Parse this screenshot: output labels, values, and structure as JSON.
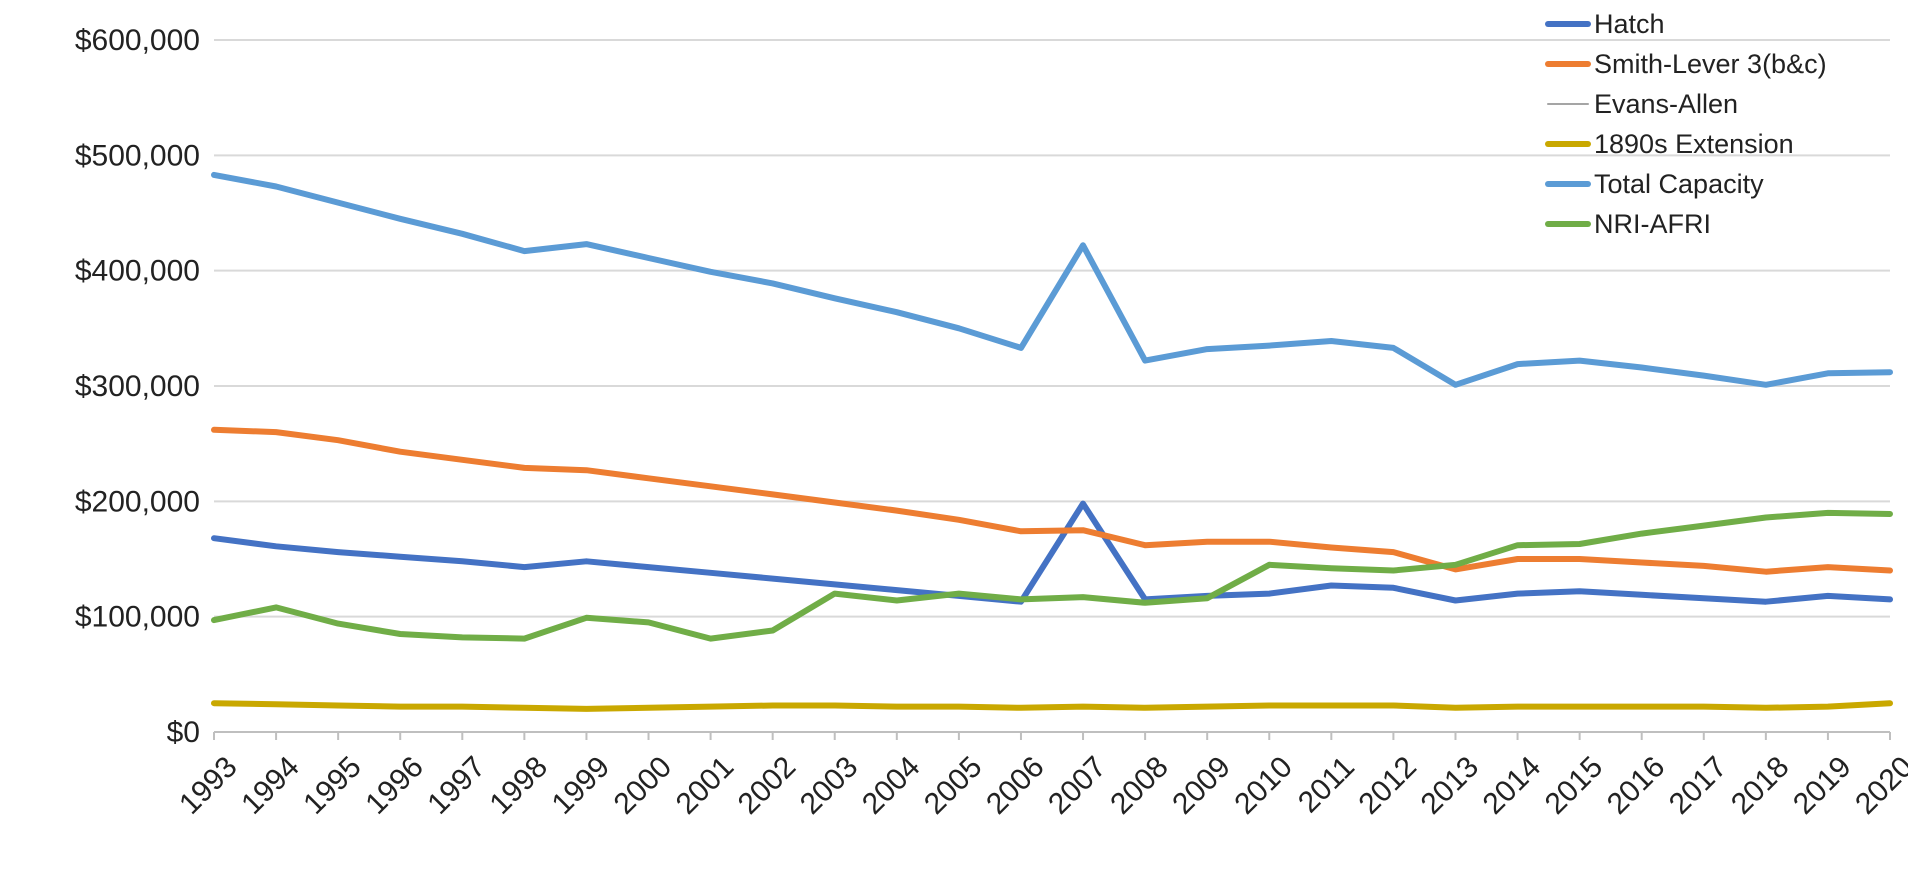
{
  "chart_data": {
    "type": "line",
    "title": "",
    "xlabel": "",
    "ylabel": "",
    "ylim": [
      0,
      600000
    ],
    "y_ticks": [
      0,
      100000,
      200000,
      300000,
      400000,
      500000,
      600000
    ],
    "y_tick_labels": [
      "$0",
      "$100,000",
      "$200,000",
      "$300,000",
      "$400,000",
      "$500,000",
      "$600,000"
    ],
    "grid": true,
    "legend_position": "top-right",
    "x": [
      "1993",
      "1994",
      "1995",
      "1996",
      "1997",
      "1998",
      "1999",
      "2000",
      "2001",
      "2002",
      "2003",
      "2004",
      "2005",
      "2006",
      "2007",
      "2008",
      "2009",
      "2010",
      "2011",
      "2012",
      "2013",
      "2014",
      "2015",
      "2016",
      "2017",
      "2018",
      "2019",
      "2020"
    ],
    "series": [
      {
        "name": "Hatch",
        "color": "#4472C4",
        "values": [
          168000,
          161000,
          156000,
          152000,
          148000,
          143000,
          148000,
          143000,
          138000,
          133000,
          128000,
          123000,
          118000,
          113000,
          198000,
          115000,
          118000,
          120000,
          127000,
          125000,
          114000,
          120000,
          122000,
          119000,
          116000,
          113000,
          118000,
          115000
        ]
      },
      {
        "name": "Smith-Lever 3(b&c)",
        "color": "#ED7D31",
        "values": [
          262000,
          260000,
          253000,
          243000,
          236000,
          229000,
          227000,
          220000,
          213000,
          206000,
          199000,
          192000,
          184000,
          174000,
          175000,
          162000,
          165000,
          165000,
          160000,
          156000,
          141000,
          150000,
          150000,
          147000,
          144000,
          139000,
          143000,
          140000
        ]
      },
      {
        "name": "Evans-Allen",
        "color": "#A5A5A5",
        "values": [
          24000,
          23000,
          22000,
          22000,
          21000,
          21000,
          21000,
          21000,
          22000,
          23000,
          23000,
          22000,
          22000,
          22000,
          22000,
          22000,
          23000,
          24000,
          24000,
          23000,
          22000,
          22000,
          23000,
          23000,
          22000,
          22000,
          23000,
          26000
        ]
      },
      {
        "name": "1890s Extension",
        "color": "#C9A800",
        "values": [
          25000,
          24000,
          23000,
          22000,
          22000,
          21000,
          20000,
          21000,
          22000,
          23000,
          23000,
          22000,
          22000,
          21000,
          22000,
          21000,
          22000,
          23000,
          23000,
          23000,
          21000,
          22000,
          22000,
          22000,
          22000,
          21000,
          22000,
          25000
        ]
      },
      {
        "name": "Total Capacity",
        "color": "#5B9BD5",
        "values": [
          483000,
          473000,
          459000,
          445000,
          432000,
          417000,
          423000,
          411000,
          399000,
          389000,
          376000,
          364000,
          350000,
          333000,
          422000,
          322000,
          332000,
          335000,
          339000,
          333000,
          301000,
          319000,
          322000,
          316000,
          309000,
          301000,
          311000,
          312000
        ]
      },
      {
        "name": "NRI-AFRI",
        "color": "#70AD47",
        "values": [
          97000,
          108000,
          94000,
          85000,
          82000,
          81000,
          99000,
          95000,
          81000,
          88000,
          120000,
          114000,
          120000,
          115000,
          117000,
          112000,
          116000,
          145000,
          142000,
          140000,
          145000,
          162000,
          163000,
          172000,
          179000,
          186000,
          190000,
          189000
        ]
      }
    ]
  }
}
